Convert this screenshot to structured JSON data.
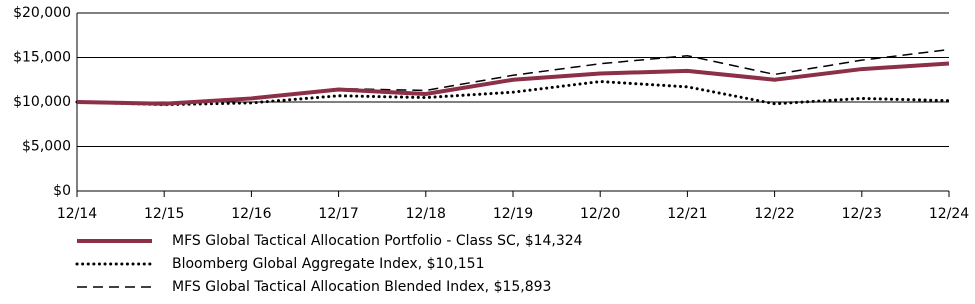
{
  "chart_data": {
    "type": "line",
    "categories": [
      "12/14",
      "12/15",
      "12/16",
      "12/17",
      "12/18",
      "12/19",
      "12/20",
      "12/21",
      "12/22",
      "12/23",
      "12/24"
    ],
    "series": [
      {
        "name": "MFS Global Tactical Allocation Portfolio - Class SC, $14,324",
        "color": "#8b3046",
        "style": "solid",
        "values": [
          10000,
          9800,
          10400,
          11400,
          10900,
          12500,
          13200,
          13500,
          12500,
          13700,
          14324
        ]
      },
      {
        "name": "Bloomberg Global Aggregate Index, $10,151",
        "color": "#000000",
        "style": "dotted",
        "values": [
          10000,
          9700,
          9900,
          10700,
          10500,
          11100,
          12300,
          11700,
          9800,
          10400,
          10151
        ]
      },
      {
        "name": "MFS Global Tactical Allocation Blended Index, $15,893",
        "color": "#000000",
        "style": "dashed",
        "values": [
          10000,
          9900,
          10500,
          11500,
          11300,
          13000,
          14300,
          15200,
          13100,
          14700,
          15893
        ]
      }
    ],
    "ylim": [
      0,
      20000
    ],
    "yticks": [
      {
        "value": 0,
        "label": "$0"
      },
      {
        "value": 5000,
        "label": "$5,000"
      },
      {
        "value": 10000,
        "label": "$10,000"
      },
      {
        "value": 15000,
        "label": "$15,000"
      },
      {
        "value": 20000,
        "label": "$20,000"
      }
    ],
    "grid": true
  }
}
